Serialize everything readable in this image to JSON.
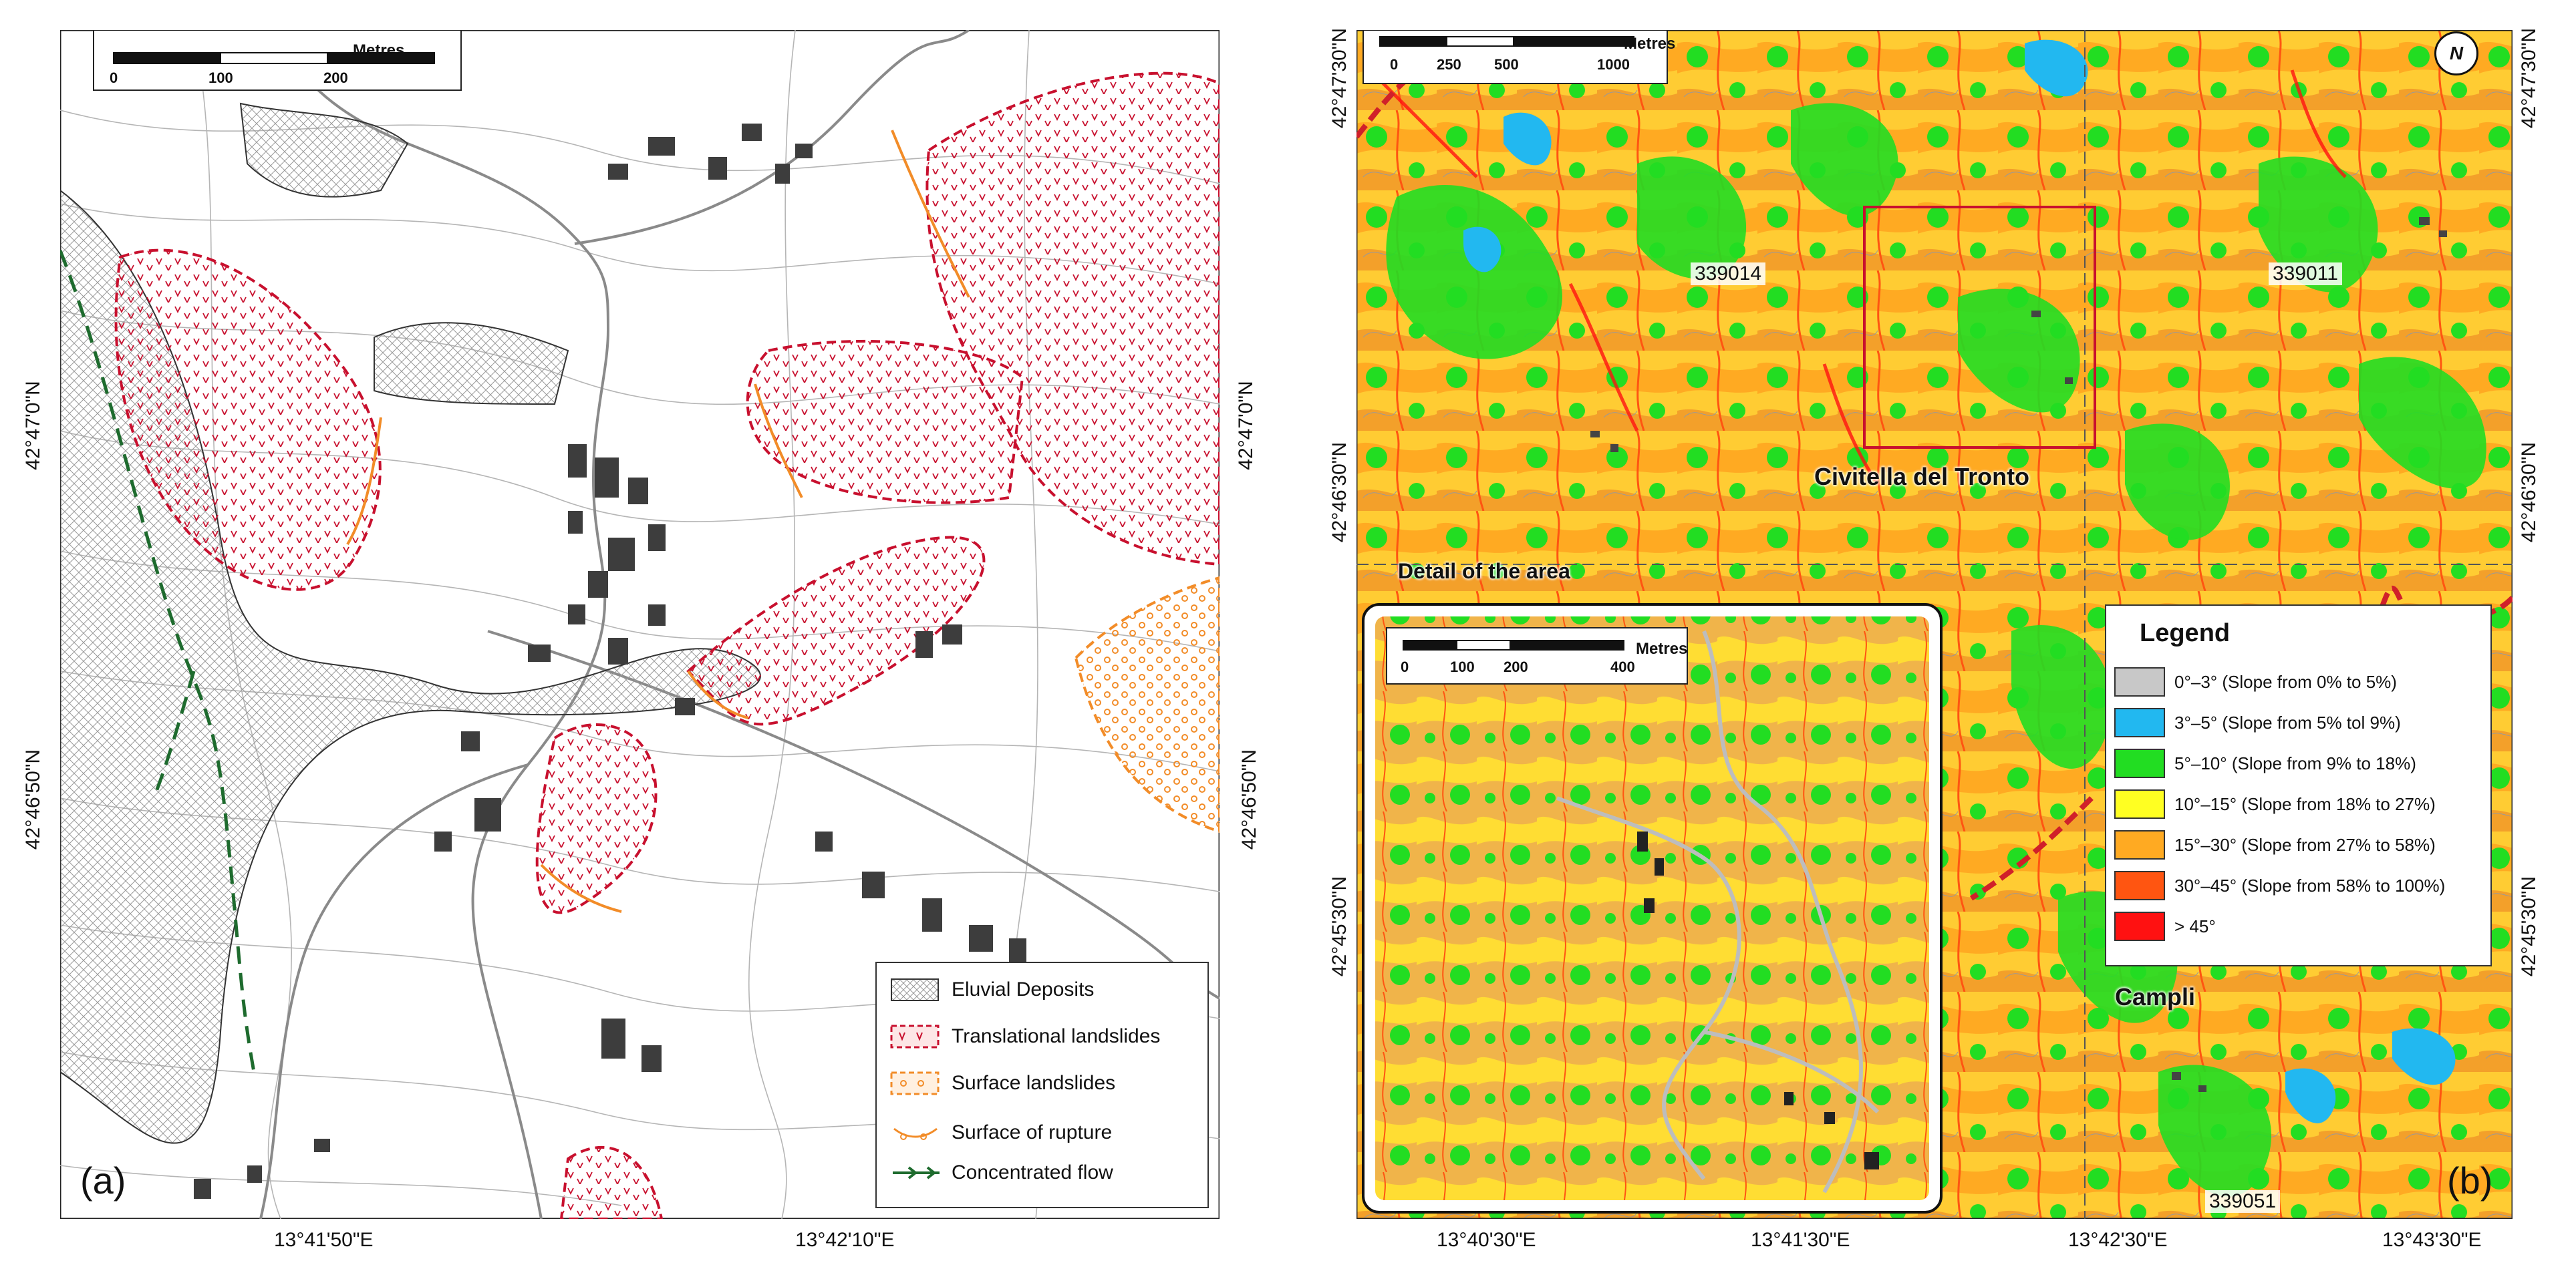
{
  "panel_a": {
    "label": "(a)",
    "scalebar": {
      "title": "Metres",
      "ticks": [
        "0",
        "100",
        "200"
      ]
    },
    "lat_ticks": [
      "42°47'0\"N",
      "42°46'50\"N"
    ],
    "lon_ticks": [
      "13°41'50\"E",
      "13°42'10\"E"
    ],
    "legend": [
      {
        "label": "Eluvial Deposits",
        "symbol": "hatch-grey"
      },
      {
        "label": "Translational landslides",
        "symbol": "red-dashed-pattern"
      },
      {
        "label": "Surface landslides",
        "symbol": "orange-dashed-pattern"
      },
      {
        "label": "Surface of rupture",
        "symbol": "orange-scalloped-line"
      },
      {
        "label": "Concentrated flow",
        "symbol": "green-arrow-line"
      }
    ],
    "colors": {
      "landslide": "#c8102e",
      "surface": "#f28c28",
      "flow": "#1e6b2e",
      "deposit": "#888888"
    }
  },
  "panel_b": {
    "label": "(b)",
    "north_label": "N",
    "scalebar": {
      "title": "Metres",
      "ticks": [
        "0",
        "250",
        "500",
        "1000"
      ]
    },
    "lat_ticks": [
      "42°47'30\"N",
      "42°46'30\"N",
      "42°45'30\"N"
    ],
    "lon_ticks": [
      "13°40'30\"E",
      "13°41'30\"E",
      "13°42'30\"E",
      "13°43'30\"E"
    ],
    "places": {
      "sheet_339014": "339014",
      "sheet_339011": "339011",
      "sheet_339051": "339051",
      "civitella": "Civitella del Tronto",
      "campli": "Campli",
      "detail": "Detail of the area"
    },
    "inset_scalebar": {
      "title": "Metres",
      "ticks": [
        "0",
        "100",
        "200",
        "400"
      ]
    },
    "legend": {
      "title": "Legend",
      "items": [
        {
          "label": "0°–3° (Slope from 0% to 5%)",
          "color": "#c8c8c8"
        },
        {
          "label": "3°–5° (Slope from 5% tol 9%)",
          "color": "#22b8f0"
        },
        {
          "label": "5°–10° (Slope from 9% to 18%)",
          "color": "#22dd22"
        },
        {
          "label": "10°–15° (Slope from 18% to 27%)",
          "color": "#ffff22"
        },
        {
          "label": "15°–30° (Slope from 27% to 58%)",
          "color": "#ffaa22"
        },
        {
          "label": "30°–45° (Slope from 58% to 100%)",
          "color": "#ff5511"
        },
        {
          "label": "> 45°",
          "color": "#ff1111"
        }
      ]
    }
  }
}
